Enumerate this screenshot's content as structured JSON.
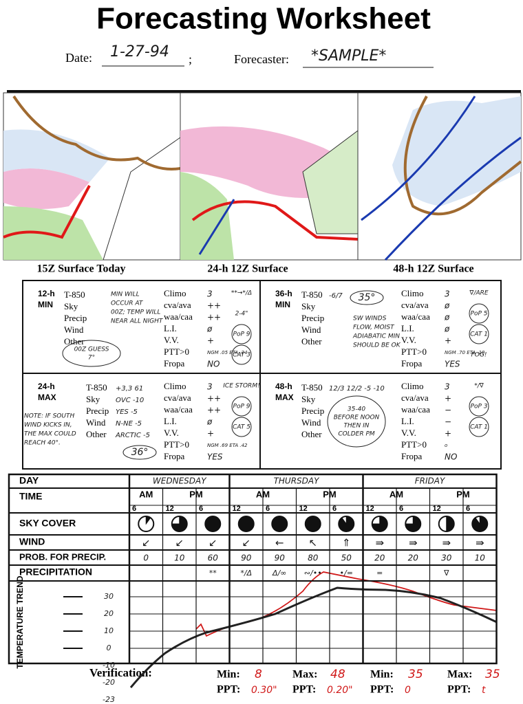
{
  "header": {
    "title": "Forecasting Worksheet",
    "date_label": "Date:",
    "date": "1-27-94",
    "forecaster_label": "Forecaster:",
    "forecaster": "*SAMPLE*"
  },
  "maps": [
    "15Z Surface Today",
    "24-h 12Z Surface",
    "48-h 12Z Surface"
  ],
  "boxes": [
    {
      "period": "12-h",
      "kind": "MIN",
      "row_labels": [
        "T-850",
        "Sky",
        "Precip",
        "Wind",
        "Other"
      ],
      "row_values": [
        null,
        null,
        null,
        null,
        null
      ],
      "notes": [
        "MIN WILL",
        "OCCUR AT",
        "00Z; TEMP WILL",
        "NEAR ALL NIGHT"
      ],
      "circled": [
        "00Z GUESS",
        "7°"
      ],
      "right_labels": [
        "Climo",
        "cva/ava",
        "waa/caa",
        "L.I.",
        "V.V.",
        "PTT>0",
        "Fropa"
      ],
      "right_values": [
        "3",
        "++",
        "++",
        "ø",
        "+",
        "NGM .05 ETA .24",
        "NO"
      ],
      "side": [
        "**→*/Δ",
        "2-4\"",
        "PoP 9",
        "CAT 3"
      ]
    },
    {
      "period": "36-h",
      "kind": "MIN",
      "row_labels": [
        "T-850",
        "Sky",
        "Precip",
        "Wind",
        "Other"
      ],
      "row_values": [
        "-6/7",
        null,
        null,
        null,
        null
      ],
      "notes": [
        "SW WINDS",
        "FLOW, MOIST",
        "ADIABATIC MIN",
        "SHOULD BE OK"
      ],
      "circled": [
        "35°"
      ],
      "right_labels": [
        "Climo",
        "cva/ava",
        "waa/caa",
        "L.I.",
        "V.V.",
        "PTT>0",
        "Fropa"
      ],
      "right_values": [
        "3",
        "ø",
        "ø",
        "ø",
        "+",
        "NGM .70 ETA .10",
        "YES"
      ],
      "side": [
        "∇/ARE",
        "PoP 5",
        "CAT 1",
        "FOG!"
      ]
    },
    {
      "period": "24-h",
      "kind": "MAX",
      "row_labels": [
        "T-850",
        "Sky",
        "Precip",
        "Wind",
        "Other"
      ],
      "row_values": [
        "+3,3 61",
        "OVC -10",
        "YES -5",
        "N-NE -5",
        "ARCTIC -5"
      ],
      "notes": [
        "NOTE: IF SOUTH",
        "WIND KICKS IN,",
        "THE MAX COULD",
        "REACH 40°."
      ],
      "circled": [
        "36°"
      ],
      "right_labels": [
        "Climo",
        "cva/ava",
        "waa/caa",
        "L.I.",
        "V.V.",
        "PTT>0",
        "Fropa"
      ],
      "right_values": [
        "3",
        "++",
        "++",
        "ø",
        "+",
        "NGM .69 ETA .42",
        "YES"
      ],
      "side": [
        "ICE STORM!",
        "PoP 9",
        "CAT 5"
      ]
    },
    {
      "period": "48-h",
      "kind": "MAX",
      "row_labels": [
        "T-850",
        "Sky",
        "Precip",
        "Wind",
        "Other"
      ],
      "row_values": [
        "12/3 12/2 -5 -10",
        null,
        null,
        null,
        null
      ],
      "notes": [],
      "circled": [
        "35-40",
        "BEFORE NOON",
        "THEN IN",
        "COLDER PM"
      ],
      "right_labels": [
        "Climo",
        "cva/ava",
        "waa/caa",
        "L.I.",
        "V.V.",
        "PTT>0",
        "Fropa"
      ],
      "right_values": [
        "3",
        "+",
        "−",
        "−",
        "+",
        "o",
        "NO"
      ],
      "side": [
        "*/∇",
        "PoP 3",
        "CAT 1"
      ]
    }
  ],
  "table": {
    "row_labels": [
      "DAY",
      "TIME",
      "SKY COVER",
      "WIND",
      "PROB. FOR PRECIP.",
      "PRECIPITATION",
      "TEMPERATURE TREND"
    ],
    "days": [
      "WEDNESDAY",
      "THURSDAY",
      "FRIDAY"
    ],
    "ampm": [
      "AM",
      "PM",
      "AM",
      "PM",
      "AM",
      "PM"
    ],
    "hours": [
      6,
      12,
      6,
      12,
      6,
      12,
      6,
      12,
      6,
      12,
      6
    ],
    "sky_cover": [
      0.1,
      0.75,
      1,
      1,
      1,
      1,
      0.9,
      0.75,
      0.75,
      0.5,
      0.9
    ],
    "wind": [
      "↙",
      "↙",
      "↙",
      "↙",
      "←",
      "↖",
      "⇑",
      "⇛",
      "⇛",
      "⇛",
      "⇛"
    ],
    "pop": [
      0,
      10,
      60,
      90,
      90,
      80,
      50,
      20,
      20,
      30,
      10
    ],
    "precipitation": [
      null,
      null,
      "**",
      "*/Δ",
      "Δ/∞",
      "∾/••",
      "•/=",
      "=",
      null,
      "∇",
      null
    ],
    "temp_labels": [
      "30",
      "20",
      "10",
      "0",
      "-10",
      "-20",
      "-23"
    ]
  },
  "verification": {
    "label": "Verification:",
    "entries": [
      {
        "label": "Min:",
        "value": 8,
        "ppt_label": "PPT:",
        "ppt": "0.30\""
      },
      {
        "label": "Max:",
        "value": 48,
        "ppt_label": "PPT:",
        "ppt": "0.20\""
      },
      {
        "label": "Min:",
        "value": 35,
        "ppt_label": "PPT:",
        "ppt": "0"
      },
      {
        "label": "Max:",
        "value": 35,
        "ppt_label": "PPT:",
        "ppt": "t"
      }
    ]
  }
}
